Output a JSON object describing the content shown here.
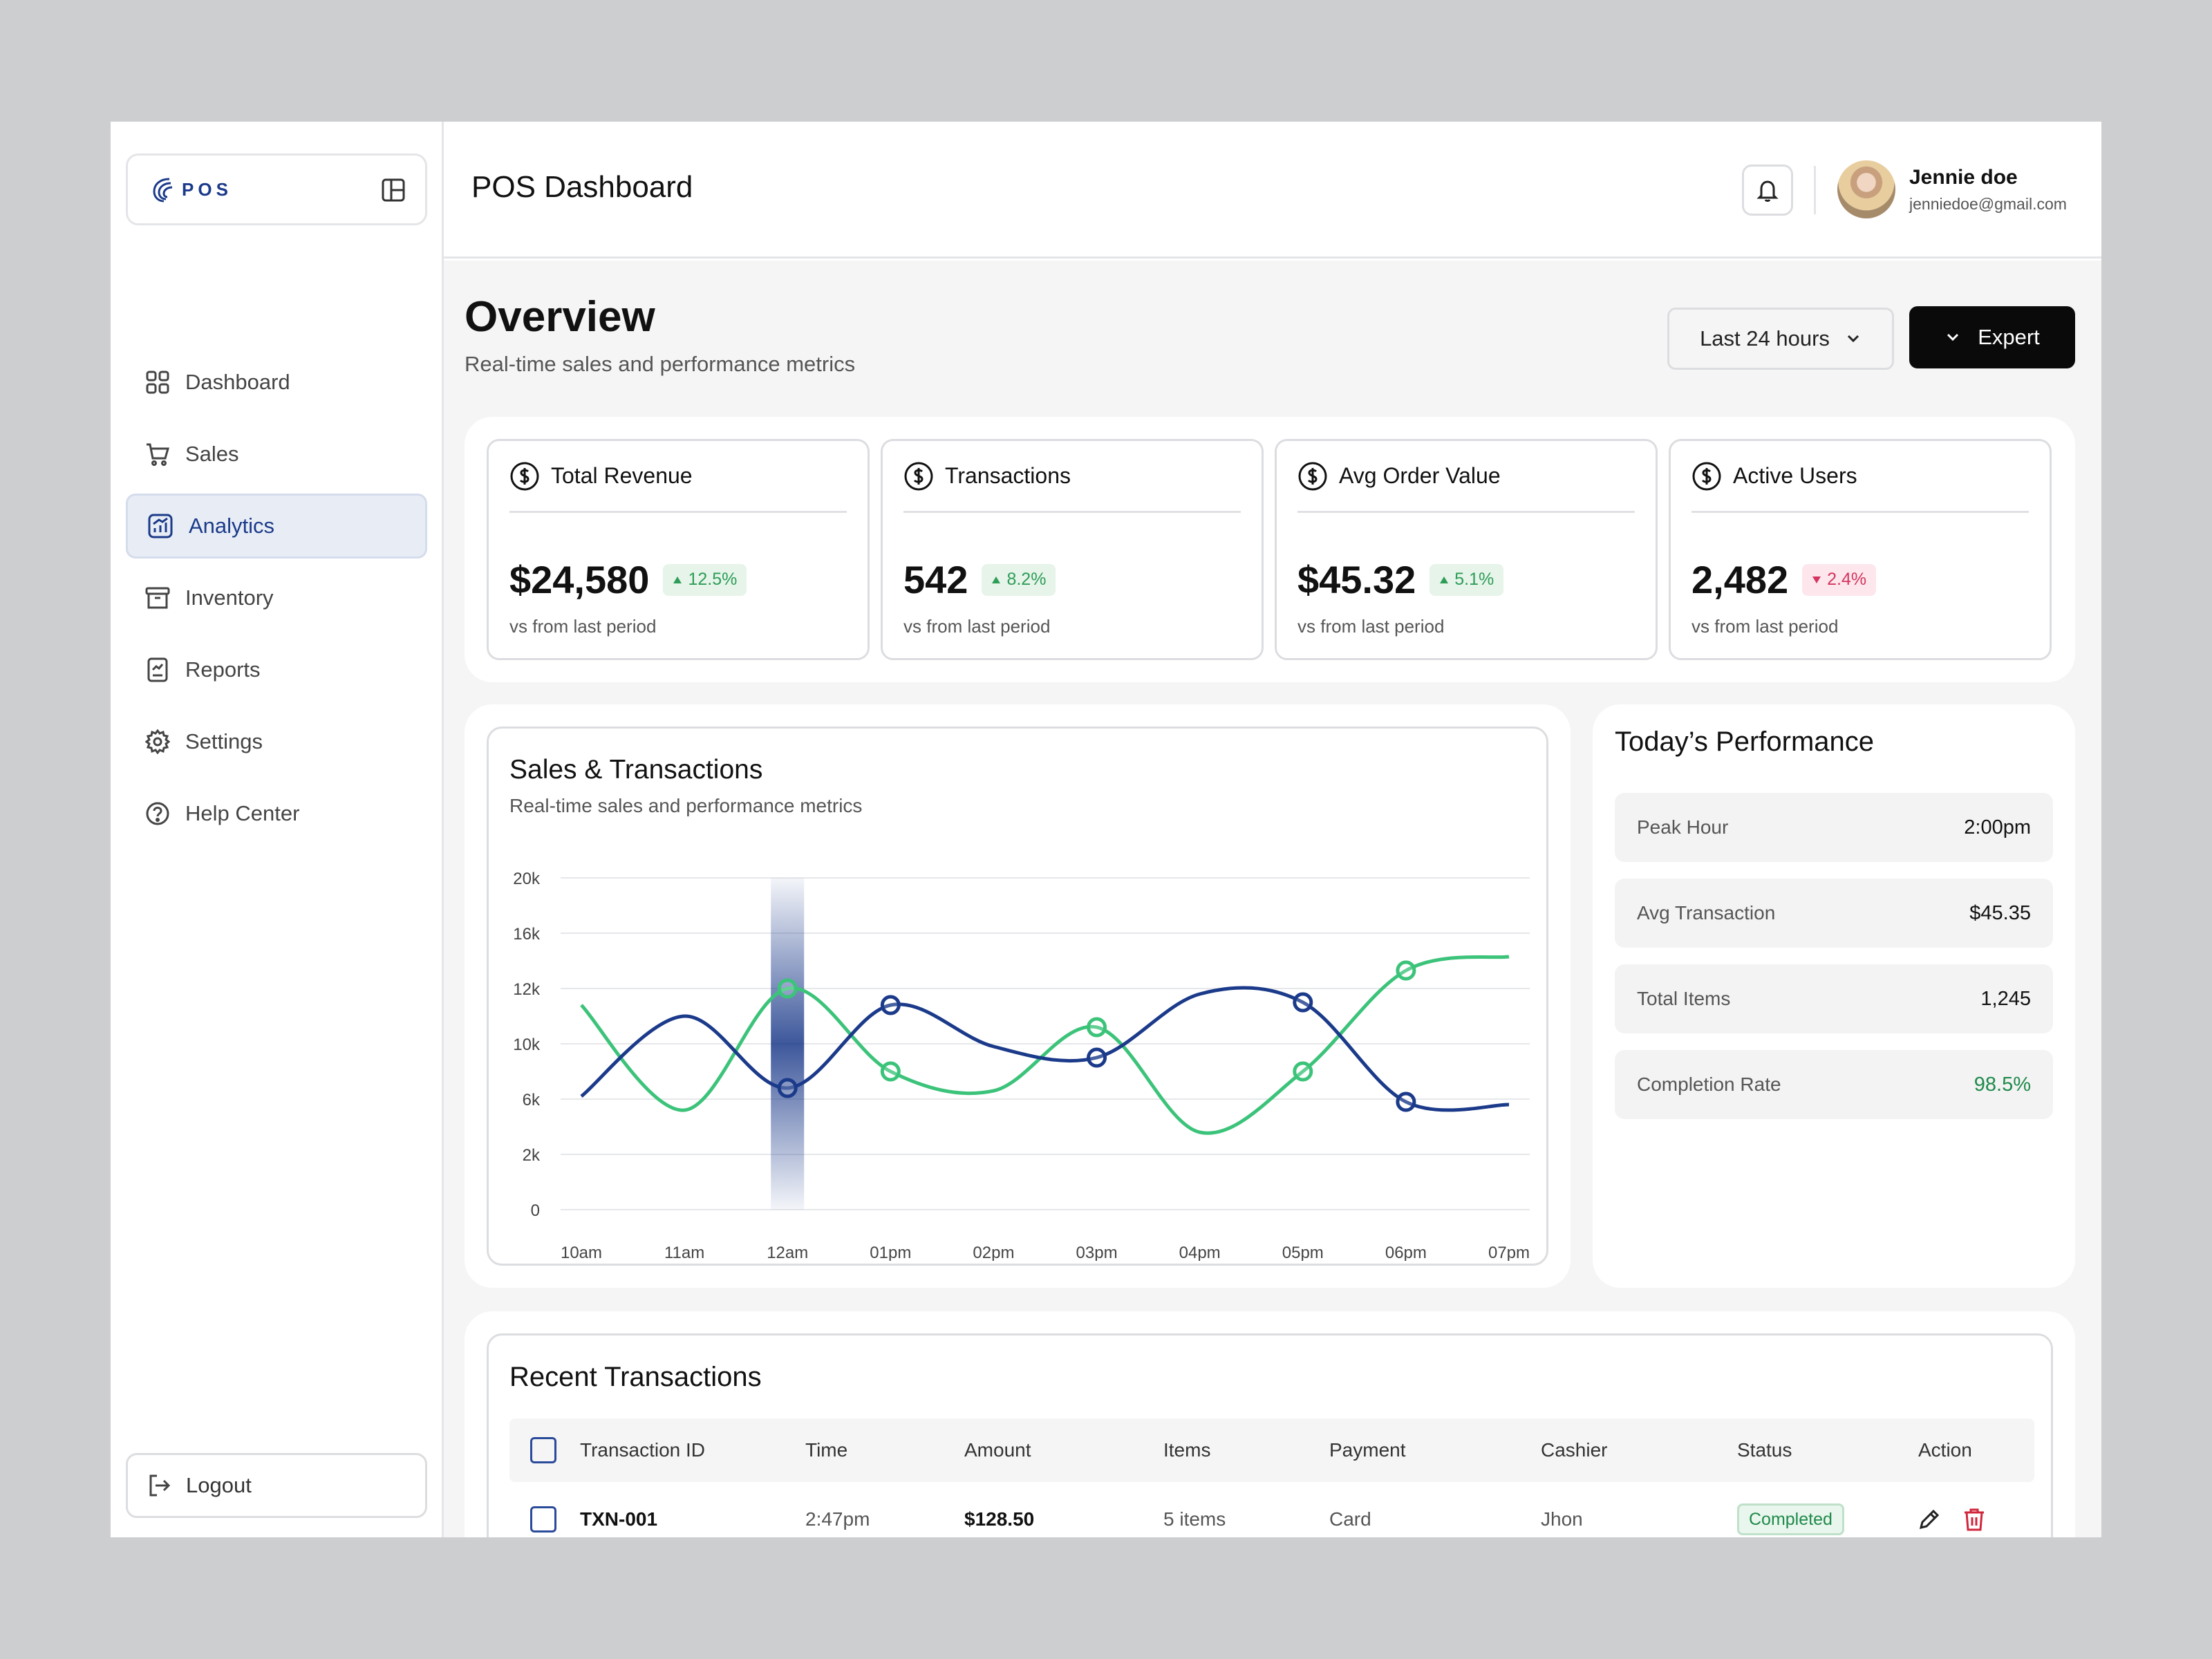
{
  "brand": {
    "name": "POS"
  },
  "sidebar": {
    "items": [
      {
        "label": "Dashboard",
        "icon": "grid-icon"
      },
      {
        "label": "Sales",
        "icon": "cart-icon"
      },
      {
        "label": "Analytics",
        "icon": "analytics-icon",
        "active": true
      },
      {
        "label": "Inventory",
        "icon": "archive-icon"
      },
      {
        "label": "Reports",
        "icon": "report-icon"
      },
      {
        "label": "Settings",
        "icon": "gear-icon"
      },
      {
        "label": "Help Center",
        "icon": "help-icon"
      }
    ],
    "logout_label": "Logout"
  },
  "header": {
    "title": "POS Dashboard",
    "user": {
      "name": "Jennie doe",
      "email": "jenniedoe@gmail.com"
    }
  },
  "overview": {
    "title": "Overview",
    "subtitle": "Real-time sales and performance metrics",
    "range_label": "Last 24 hours",
    "expert_label": "Expert"
  },
  "stats": [
    {
      "label": "Total Revenue",
      "value": "$24,580",
      "delta": "12.5%",
      "direction": "up",
      "foot": "vs from last period"
    },
    {
      "label": "Transactions",
      "value": "542",
      "delta": "8.2%",
      "direction": "up",
      "foot": "vs from last period"
    },
    {
      "label": "Avg Order Value",
      "value": "$45.32",
      "delta": "5.1%",
      "direction": "up",
      "foot": "vs from last period"
    },
    {
      "label": "Active Users",
      "value": "2,482",
      "delta": "2.4%",
      "direction": "down",
      "foot": "vs from last period"
    }
  ],
  "chart": {
    "title": "Sales & Transactions",
    "subtitle": "Real-time sales and performance metrics"
  },
  "chart_data": {
    "type": "line",
    "x": [
      "10am",
      "11am",
      "12am",
      "01pm",
      "02pm",
      "03pm",
      "04pm",
      "05pm",
      "06pm",
      "07pm"
    ],
    "y_ticks": [
      "0",
      "2k",
      "6k",
      "10k",
      "12k",
      "16k",
      "20k"
    ],
    "y_tick_values": [
      0,
      2000,
      6000,
      10000,
      12000,
      16000,
      20000
    ],
    "ylim": [
      0,
      20000
    ],
    "highlight_category": "12am",
    "colors": {
      "navy": "#1b3a8a",
      "green": "#3cc37a"
    },
    "series": [
      {
        "color": "#1b3a8a",
        "values": [
          6200,
          11000,
          6800,
          11400,
          9800,
          9000,
          11800,
          11500,
          5800,
          5600
        ]
      },
      {
        "color": "#3cc37a",
        "values": [
          11400,
          5200,
          12000,
          8000,
          6600,
          10600,
          3600,
          8000,
          13300,
          14300
        ]
      }
    ],
    "markers": [
      {
        "series": 0,
        "x": "12am",
        "y": 6800
      },
      {
        "series": 0,
        "x": "01pm",
        "y": 11400
      },
      {
        "series": 0,
        "x": "03pm",
        "y": 9000
      },
      {
        "series": 0,
        "x": "05pm",
        "y": 11500
      },
      {
        "series": 0,
        "x": "06pm",
        "y": 5800
      },
      {
        "series": 1,
        "x": "12am",
        "y": 12000
      },
      {
        "series": 1,
        "x": "01pm",
        "y": 8000
      },
      {
        "series": 1,
        "x": "03pm",
        "y": 10600
      },
      {
        "series": 1,
        "x": "05pm",
        "y": 8000
      },
      {
        "series": 1,
        "x": "06pm",
        "y": 13300
      }
    ],
    "grid": true
  },
  "performance": {
    "title": "Today’s Performance",
    "rows": [
      {
        "label": "Peak Hour",
        "value": "2:00pm"
      },
      {
        "label": "Avg Transaction",
        "value": "$45.35"
      },
      {
        "label": "Total Items",
        "value": "1,245"
      },
      {
        "label": "Completion Rate",
        "value": "98.5%",
        "accent": true
      }
    ]
  },
  "transactions": {
    "title": "Recent Transactions",
    "columns": [
      "Transaction ID",
      "Time",
      "Amount",
      "Items",
      "Payment",
      "Cashier",
      "Status",
      "Action"
    ],
    "rows": [
      {
        "id": "TXN-001",
        "time": "2:47pm",
        "amount": "$128.50",
        "items": "5 items",
        "payment": "Card",
        "cashier": "Jhon",
        "status": "Completed"
      }
    ]
  }
}
